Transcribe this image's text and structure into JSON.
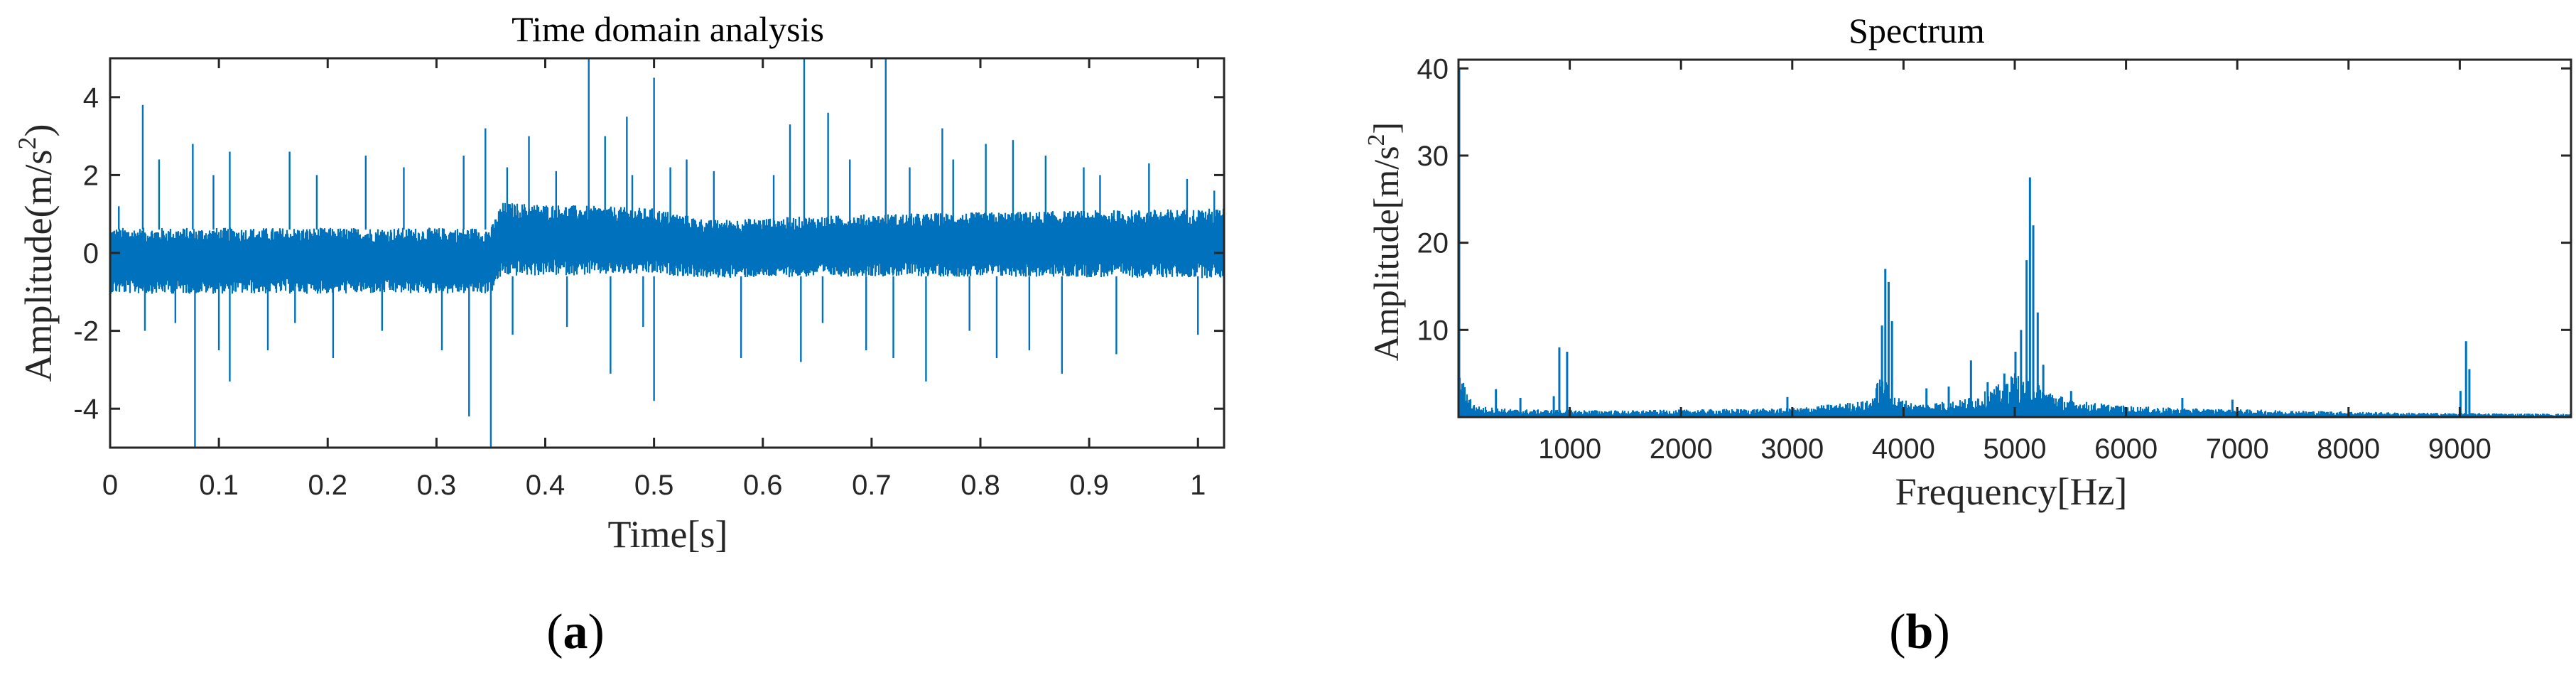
{
  "figure": {
    "panel_a_label_text": "(a)",
    "panel_a_letter": "a",
    "panel_b_label_text": "(b)",
    "panel_b_letter": "b"
  },
  "colors": {
    "signal": "#0072BD",
    "axis": "#262626",
    "background": "#ffffff"
  },
  "chart_data": [
    {
      "id": "a",
      "type": "line",
      "title": "Time domain analysis",
      "xlabel": "Time[s]",
      "ylabel_base": "Amplitude(m/s",
      "ylabel_sup": "2",
      "ylabel_end": ")",
      "xlim": [
        0,
        1.024
      ],
      "ylim": [
        -5,
        5
      ],
      "xticks": [
        0,
        0.1,
        0.2,
        0.3,
        0.4,
        0.5,
        0.6,
        0.7,
        0.8,
        0.9,
        1
      ],
      "xtick_labels": [
        "0",
        "0.1",
        "0.2",
        "0.3",
        "0.4",
        "0.5",
        "0.6",
        "0.7",
        "0.8",
        "0.9",
        "1"
      ],
      "yticks": [
        -4,
        -2,
        0,
        2,
        4
      ],
      "ytick_labels": [
        "-4",
        "-2",
        "0",
        "2",
        "4"
      ],
      "grid": false,
      "series": [
        {
          "x": [
            0,
            0.35,
            0.36,
            0.5,
            0.55,
            0.7,
            1.024
          ],
          "envelope": [
            0.85,
            0.85,
            0.95,
            0.85,
            0.75,
            0.8,
            0.9
          ],
          "offset": [
            -0.2,
            -0.2,
            0.35,
            0.3,
            0.1,
            0.2,
            0.25
          ]
        }
      ],
      "spikes": [
        {
          "x": 0.008,
          "y": 1.2
        },
        {
          "x": 0.03,
          "y": 3.8
        },
        {
          "x": 0.032,
          "y": -2.0
        },
        {
          "x": 0.045,
          "y": 2.4
        },
        {
          "x": 0.06,
          "y": -1.8
        },
        {
          "x": 0.076,
          "y": 2.8
        },
        {
          "x": 0.078,
          "y": -5.0
        },
        {
          "x": 0.095,
          "y": 2.0
        },
        {
          "x": 0.1,
          "y": -2.5
        },
        {
          "x": 0.11,
          "y": 2.6
        },
        {
          "x": 0.11,
          "y": -3.3
        },
        {
          "x": 0.145,
          "y": -2.5
        },
        {
          "x": 0.165,
          "y": 2.6
        },
        {
          "x": 0.17,
          "y": -1.8
        },
        {
          "x": 0.19,
          "y": 2.0
        },
        {
          "x": 0.205,
          "y": -2.7
        },
        {
          "x": 0.235,
          "y": 2.5
        },
        {
          "x": 0.25,
          "y": -2.0
        },
        {
          "x": 0.27,
          "y": 2.2
        },
        {
          "x": 0.305,
          "y": -2.5
        },
        {
          "x": 0.325,
          "y": 2.5
        },
        {
          "x": 0.33,
          "y": -4.2
        },
        {
          "x": 0.345,
          "y": 3.2
        },
        {
          "x": 0.35,
          "y": -5.0
        },
        {
          "x": 0.365,
          "y": 2.2
        },
        {
          "x": 0.37,
          "y": -2.1
        },
        {
          "x": 0.385,
          "y": 3.0
        },
        {
          "x": 0.41,
          "y": 2.1
        },
        {
          "x": 0.42,
          "y": -1.9
        },
        {
          "x": 0.44,
          "y": 5.0
        },
        {
          "x": 0.455,
          "y": 3.0
        },
        {
          "x": 0.46,
          "y": -3.1
        },
        {
          "x": 0.475,
          "y": 3.5
        },
        {
          "x": 0.48,
          "y": 2.0
        },
        {
          "x": 0.49,
          "y": -1.9
        },
        {
          "x": 0.5,
          "y": 4.5
        },
        {
          "x": 0.5,
          "y": -3.8
        },
        {
          "x": 0.515,
          "y": 2.2
        },
        {
          "x": 0.53,
          "y": 2.4
        },
        {
          "x": 0.555,
          "y": 2.1
        },
        {
          "x": 0.58,
          "y": -2.7
        },
        {
          "x": 0.61,
          "y": 2.0
        },
        {
          "x": 0.625,
          "y": 3.3
        },
        {
          "x": 0.635,
          "y": -2.8
        },
        {
          "x": 0.638,
          "y": 5.0
        },
        {
          "x": 0.655,
          "y": -1.8
        },
        {
          "x": 0.66,
          "y": 3.6
        },
        {
          "x": 0.68,
          "y": 2.4
        },
        {
          "x": 0.695,
          "y": -2.5
        },
        {
          "x": 0.713,
          "y": 5.0
        },
        {
          "x": 0.72,
          "y": -2.7
        },
        {
          "x": 0.735,
          "y": 2.2
        },
        {
          "x": 0.75,
          "y": -3.3
        },
        {
          "x": 0.765,
          "y": 3.2
        },
        {
          "x": 0.775,
          "y": 2.4
        },
        {
          "x": 0.79,
          "y": -2.0
        },
        {
          "x": 0.805,
          "y": 2.8
        },
        {
          "x": 0.815,
          "y": -2.7
        },
        {
          "x": 0.83,
          "y": 2.9
        },
        {
          "x": 0.845,
          "y": -2.5
        },
        {
          "x": 0.86,
          "y": 2.5
        },
        {
          "x": 0.875,
          "y": -3.1
        },
        {
          "x": 0.895,
          "y": 2.2
        },
        {
          "x": 0.91,
          "y": 2.0
        },
        {
          "x": 0.925,
          "y": -2.6
        },
        {
          "x": 0.955,
          "y": 2.3
        },
        {
          "x": 0.99,
          "y": 1.9
        },
        {
          "x": 1.0,
          "y": -2.1
        },
        {
          "x": 1.015,
          "y": 1.6
        }
      ]
    },
    {
      "id": "b",
      "type": "line",
      "title": "Spectrum",
      "xlabel": "Frequency[Hz]",
      "ylabel_base": "Amplitude[m/s",
      "ylabel_sup": "2",
      "ylabel_end": "]",
      "xlim": [
        0,
        10000
      ],
      "ylim": [
        0,
        41
      ],
      "xticks": [
        1000,
        2000,
        3000,
        4000,
        5000,
        6000,
        7000,
        8000,
        9000
      ],
      "xtick_labels": [
        "1000",
        "2000",
        "3000",
        "4000",
        "5000",
        "6000",
        "7000",
        "8000",
        "9000"
      ],
      "yticks": [
        10,
        20,
        30,
        40
      ],
      "ytick_labels": [
        "10",
        "20",
        "30",
        "40"
      ],
      "grid": false,
      "baseline": {
        "x": [
          0,
          150,
          500,
          1500,
          3000,
          3700,
          3800,
          3900,
          4100,
          4500,
          4800,
          5000,
          5200,
          5500,
          6000,
          6500,
          7000,
          7500,
          8000,
          8500,
          10000
        ],
        "y": [
          4.0,
          1.0,
          0.7,
          0.6,
          0.8,
          1.5,
          4.0,
          2.0,
          1.2,
          1.5,
          2.5,
          4.0,
          3.0,
          1.5,
          1.0,
          0.8,
          0.7,
          0.6,
          0.5,
          0.4,
          0.3
        ]
      },
      "peaks": [
        {
          "x": 0,
          "y": 40
        },
        {
          "x": 330,
          "y": 3.2
        },
        {
          "x": 550,
          "y": 2.2
        },
        {
          "x": 850,
          "y": 2.4
        },
        {
          "x": 900,
          "y": 8.0
        },
        {
          "x": 970,
          "y": 7.5
        },
        {
          "x": 2950,
          "y": 2.3
        },
        {
          "x": 3800,
          "y": 10.5
        },
        {
          "x": 3830,
          "y": 17.0
        },
        {
          "x": 3860,
          "y": 15.5
        },
        {
          "x": 3890,
          "y": 11.0
        },
        {
          "x": 4200,
          "y": 3.3
        },
        {
          "x": 4400,
          "y": 3.5
        },
        {
          "x": 4600,
          "y": 6.5
        },
        {
          "x": 4750,
          "y": 4.0
        },
        {
          "x": 4900,
          "y": 5.0
        },
        {
          "x": 5000,
          "y": 7.5
        },
        {
          "x": 5050,
          "y": 10.0
        },
        {
          "x": 5100,
          "y": 18.0
        },
        {
          "x": 5130,
          "y": 27.5
        },
        {
          "x": 5160,
          "y": 22.0
        },
        {
          "x": 5200,
          "y": 12.0
        },
        {
          "x": 5250,
          "y": 6.0
        },
        {
          "x": 5500,
          "y": 3.0
        },
        {
          "x": 6500,
          "y": 2.2
        },
        {
          "x": 6950,
          "y": 2.0
        },
        {
          "x": 9000,
          "y": 3.0
        },
        {
          "x": 9050,
          "y": 8.7
        },
        {
          "x": 9080,
          "y": 5.5
        }
      ]
    }
  ]
}
